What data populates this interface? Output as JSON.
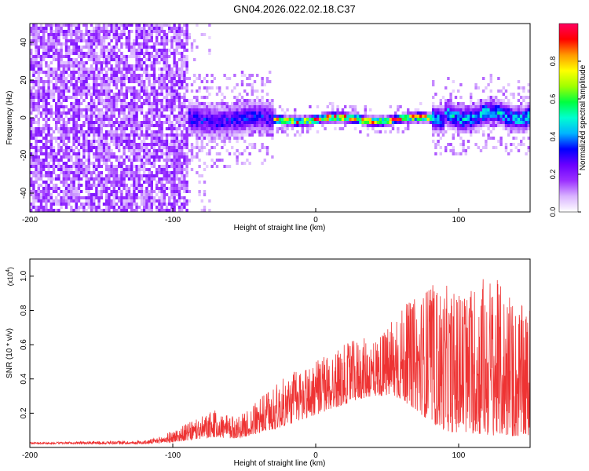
{
  "title": "GN04.2026.022.02.18.C37",
  "chart_data": [
    {
      "type": "heatmap",
      "name": "spectrogram",
      "xlabel": "Height of straight line (km)",
      "ylabel": "Frequency (Hz)",
      "xlim": [
        -200,
        150
      ],
      "ylim": [
        -50,
        50
      ],
      "xticks": [
        -200,
        -100,
        0,
        100
      ],
      "xtick_labels": [
        "-200",
        "-100",
        "0",
        "100"
      ],
      "yticks": [
        -40,
        -20,
        0,
        20,
        40
      ],
      "ytick_labels": [
        "-40",
        "-20",
        "0",
        "20",
        "40"
      ],
      "colorbar": {
        "label": "Normalized spectral amplitude",
        "range": [
          0,
          1
        ],
        "ticks": [
          0.0,
          0.2,
          0.4,
          0.6,
          0.8
        ],
        "tick_labels": [
          "0.0",
          "0.2",
          "0.4",
          "0.6",
          "0.8"
        ],
        "colors": [
          "#ffffff",
          "#d9b3ff",
          "#9b30ff",
          "#6a00ff",
          "#0000ff",
          "#00b4ff",
          "#00ffd0",
          "#00ff40",
          "#a0ff00",
          "#ffff00",
          "#ff9900",
          "#ff0000",
          "#ff0060"
        ]
      },
      "regions": [
        {
          "x_range": [
            -200,
            -90
          ],
          "freq_spread": 50,
          "amplitude": 0.15,
          "description_level": "broadband"
        },
        {
          "x_range": [
            -90,
            -30
          ],
          "freq_spread": 10,
          "amplitude": 0.35
        },
        {
          "x_range": [
            -30,
            80
          ],
          "freq_spread": 3,
          "amplitude": 0.95
        },
        {
          "x_range": [
            80,
            150
          ],
          "freq_spread": 8,
          "amplitude": 0.5
        }
      ]
    },
    {
      "type": "line",
      "name": "snr",
      "xlabel": "Height of straight line (km)",
      "ylabel": "SNR (10 * v/v)",
      "y_multiplier_label": "(x10",
      "y_multiplier_exp": "4",
      "y_multiplier_close": ")",
      "xlim": [
        -200,
        150
      ],
      "ylim": [
        0,
        1.1
      ],
      "xticks": [
        -200,
        -100,
        0,
        100
      ],
      "xtick_labels": [
        "-200",
        "-100",
        "0",
        "100"
      ],
      "yticks": [
        0.2,
        0.4,
        0.6,
        0.8,
        1.0
      ],
      "ytick_labels": [
        "0.2",
        "0.4",
        "0.6",
        "0.8",
        "1.0"
      ],
      "color": "#ee3333",
      "envelope": {
        "x": [
          -200,
          -120,
          -110,
          -100,
          -90,
          -80,
          -70,
          -60,
          -50,
          -40,
          -30,
          -20,
          -10,
          0,
          10,
          20,
          30,
          40,
          50,
          60,
          70,
          80,
          90,
          100,
          110,
          120,
          130,
          140,
          150
        ],
        "baseline": [
          0.02,
          0.02,
          0.025,
          0.03,
          0.04,
          0.05,
          0.06,
          0.05,
          0.06,
          0.08,
          0.1,
          0.13,
          0.16,
          0.19,
          0.22,
          0.25,
          0.28,
          0.3,
          0.3,
          0.28,
          0.22,
          0.15,
          0.1,
          0.08,
          0.08,
          0.07,
          0.07,
          0.06,
          0.06
        ],
        "peak": [
          0.03,
          0.04,
          0.06,
          0.1,
          0.14,
          0.18,
          0.22,
          0.18,
          0.2,
          0.28,
          0.36,
          0.42,
          0.48,
          0.5,
          0.56,
          0.6,
          0.64,
          0.64,
          0.7,
          0.82,
          0.88,
          0.96,
          0.95,
          0.92,
          0.95,
          1.05,
          0.95,
          0.85,
          0.8
        ]
      }
    }
  ]
}
